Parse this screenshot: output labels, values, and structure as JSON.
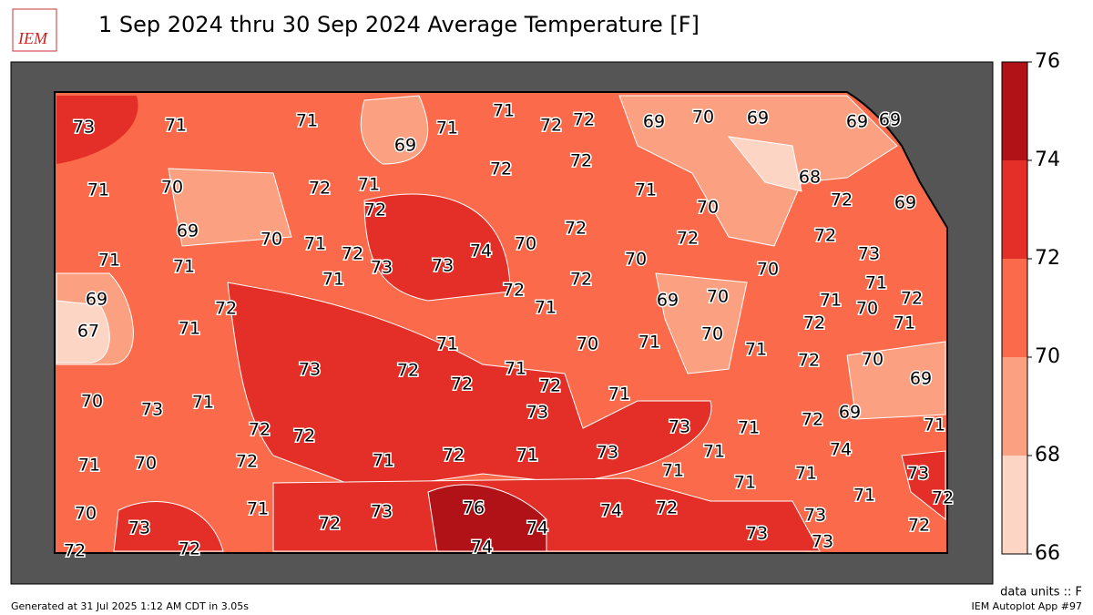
{
  "title": "1 Sep 2024 thru 30 Sep 2024 Average Temperature [F]",
  "logo": "IEM",
  "colorbar": {
    "ticks": [
      66,
      68,
      70,
      72,
      74,
      76
    ],
    "colors": [
      "#fdd5c4",
      "#fca082",
      "#fb6a4a",
      "#e32f27",
      "#b11218"
    ]
  },
  "stations": [
    73,
    71,
    71,
    69,
    71,
    71,
    72,
    72,
    69,
    70,
    69,
    69,
    69,
    71,
    70,
    72,
    71,
    72,
    72,
    71,
    70,
    68,
    72,
    69,
    69,
    70,
    71,
    72,
    72,
    70,
    72,
    72,
    72,
    73,
    71,
    71,
    73,
    73,
    74,
    70,
    70,
    71,
    71,
    72,
    72,
    69,
    72,
    71,
    69,
    70,
    71,
    70,
    72,
    72,
    71,
    67,
    71,
    71,
    70,
    71,
    70,
    71,
    73,
    72,
    71,
    72,
    70,
    69,
    70,
    73,
    71,
    72,
    72,
    71,
    73,
    69,
    72,
    72,
    73,
    71,
    72,
    71,
    71,
    70,
    72,
    71,
    72,
    71,
    73,
    71,
    71,
    74,
    71,
    71,
    73,
    71,
    72,
    70,
    73,
    71,
    72,
    73,
    76,
    74,
    74,
    72,
    73,
    73,
    72,
    72,
    72,
    74,
    73
  ],
  "footer": {
    "units": "data units :: F",
    "generated": "Generated at 31 Jul 2025 1:12 AM CDT in 3.05s",
    "app": "IEM Autoplot App #97"
  }
}
